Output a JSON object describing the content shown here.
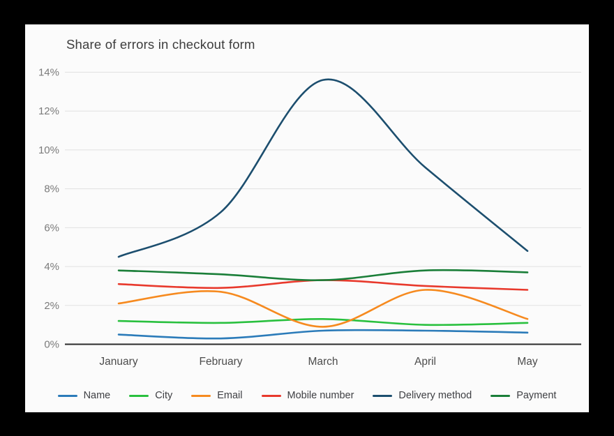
{
  "chart_data": {
    "type": "line",
    "title": "Share of errors in checkout form",
    "x": [
      "January",
      "February",
      "March",
      "April",
      "May"
    ],
    "xlabel": "",
    "ylabel": "",
    "ylim": [
      0,
      14
    ],
    "y_tick_step": 2,
    "y_tick_labels": [
      "0%",
      "2%",
      "4%",
      "6%",
      "8%",
      "10%",
      "12%",
      "14%"
    ],
    "grid": true,
    "legend_position": "bottom",
    "curve": "smooth",
    "series": [
      {
        "name": "Name",
        "color": "#2b7bb9",
        "values": [
          0.5,
          0.3,
          0.7,
          0.7,
          0.6
        ]
      },
      {
        "name": "City",
        "color": "#29c03e",
        "values": [
          1.2,
          1.1,
          1.3,
          1.0,
          1.1
        ]
      },
      {
        "name": "Email",
        "color": "#f68a1f",
        "values": [
          2.1,
          2.7,
          0.9,
          2.8,
          1.3
        ]
      },
      {
        "name": "Mobile number",
        "color": "#e8392c",
        "values": [
          3.1,
          2.9,
          3.3,
          3.0,
          2.8
        ]
      },
      {
        "name": "Delivery method",
        "color": "#1c4e6e",
        "values": [
          4.5,
          6.8,
          13.6,
          9.1,
          4.8
        ]
      },
      {
        "name": "Payment",
        "color": "#1a7e38",
        "values": [
          3.8,
          3.6,
          3.3,
          3.8,
          3.7
        ]
      }
    ]
  },
  "colors": {
    "background": "#000000",
    "card": "#fbfbfb",
    "gridline": "#e1e1e1",
    "axis_line": "#2b2b2b",
    "title_text": "#3d3d3d",
    "y_label": "#7b7b7b",
    "x_label": "#4c4c4c",
    "legend_text": "#3f4044"
  }
}
